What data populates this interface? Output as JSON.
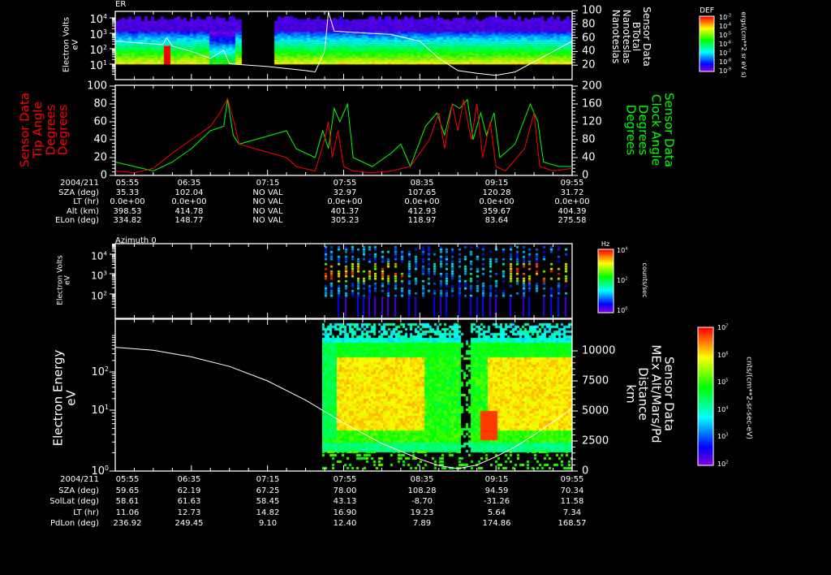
{
  "colors": {
    "background": "#000000",
    "axis": "#ffffff",
    "tip_angle": "#ff0000",
    "clock_angle": "#00ff00",
    "btotal": "#ffffff",
    "altitude": "#ffffff"
  },
  "chart_data": [
    {
      "type": "heatmap",
      "id": "er",
      "title": "ER",
      "ylabel": [
        "Electron Volts",
        "eV"
      ],
      "yscale": "log",
      "ylim": [
        1,
        10000
      ],
      "yticks": [
        {
          "base": "10",
          "exp": "4"
        },
        {
          "base": "10",
          "exp": "3"
        },
        {
          "base": "10",
          "exp": "2"
        },
        {
          "base": "10",
          "exp": "1"
        }
      ],
      "y2label": [
        "Sensor Data",
        "BTotal",
        "Nanoteslas",
        "Nanoteslas"
      ],
      "y2lim": [
        0,
        100
      ],
      "y2ticks": [
        "100",
        "80",
        "60",
        "40",
        "20"
      ],
      "data_gap": [
        "07:00",
        "07:17"
      ],
      "colorbar": {
        "title": "DEF",
        "units": "ergs/(cm**2 sr eV s)",
        "ticks": [
          {
            "base": "10",
            "exp": "-3"
          },
          {
            "base": "10",
            "exp": "-4"
          },
          {
            "base": "10",
            "exp": "-5"
          },
          {
            "base": "10",
            "exp": "-6"
          },
          {
            "base": "10",
            "exp": "-7"
          },
          {
            "base": "10",
            "exp": "-8"
          },
          {
            "base": "10",
            "exp": "-9"
          }
        ]
      },
      "line_series": {
        "name": "BTotal (nT)",
        "x": [
          "05:55",
          "06:10",
          "06:20",
          "06:22",
          "06:25",
          "06:35",
          "06:45",
          "06:52",
          "06:55",
          "07:05",
          "07:15",
          "07:25",
          "07:35",
          "07:40",
          "07:45",
          "07:47",
          "07:50",
          "08:00",
          "08:20",
          "08:35",
          "08:45",
          "08:55",
          "09:05",
          "09:15",
          "09:25",
          "09:35",
          "09:45",
          "09:55"
        ],
        "y": [
          55,
          52,
          50,
          60,
          48,
          40,
          30,
          42,
          22,
          20,
          18,
          15,
          12,
          10,
          40,
          98,
          70,
          68,
          65,
          55,
          30,
          12,
          8,
          5,
          10,
          25,
          40,
          55
        ]
      }
    },
    {
      "type": "line",
      "id": "angles",
      "xlim": [
        "05:55",
        "09:55"
      ],
      "ylabel": [
        "Sensor Data",
        "Tip Angle",
        "Degrees",
        "Degrees"
      ],
      "ylim": [
        0,
        100
      ],
      "yticks": [
        "100",
        "80",
        "60",
        "40",
        "20",
        "0"
      ],
      "y2label": [
        "Sensor Data",
        "Clock Angle",
        "Degrees",
        "Degrees"
      ],
      "y2lim": [
        0,
        200
      ],
      "y2ticks": [
        "200",
        "160",
        "120",
        "80",
        "40",
        "0"
      ],
      "series": [
        {
          "name": "Tip Angle",
          "axis": "left",
          "x": [
            "05:55",
            "06:05",
            "06:15",
            "06:25",
            "06:35",
            "06:45",
            "06:50",
            "06:54",
            "06:58",
            "07:00",
            "07:25",
            "07:30",
            "07:40",
            "07:45",
            "07:47",
            "07:49",
            "07:52",
            "07:55",
            "08:00",
            "08:10",
            "08:20",
            "08:30",
            "08:40",
            "08:45",
            "08:48",
            "08:52",
            "08:55",
            "08:58",
            "09:02",
            "09:05",
            "09:08",
            "09:12",
            "09:15",
            "09:20",
            "09:30",
            "09:35",
            "09:38",
            "09:45",
            "09:55"
          ],
          "y": [
            5,
            3,
            8,
            25,
            40,
            55,
            70,
            86,
            55,
            35,
            20,
            10,
            5,
            40,
            60,
            20,
            50,
            10,
            5,
            3,
            5,
            10,
            40,
            70,
            30,
            80,
            50,
            85,
            40,
            80,
            20,
            60,
            10,
            5,
            30,
            70,
            10,
            5,
            8
          ]
        },
        {
          "name": "Clock Angle",
          "axis": "right",
          "x": [
            "05:55",
            "06:05",
            "06:15",
            "06:25",
            "06:35",
            "06:45",
            "06:52",
            "06:54",
            "06:57",
            "07:00",
            "07:25",
            "07:30",
            "07:40",
            "07:44",
            "07:47",
            "07:50",
            "07:53",
            "07:57",
            "08:00",
            "08:10",
            "08:20",
            "08:25",
            "08:30",
            "08:38",
            "08:44",
            "08:48",
            "08:52",
            "08:56",
            "09:00",
            "09:03",
            "09:07",
            "09:10",
            "09:14",
            "09:17",
            "09:25",
            "09:33",
            "09:37",
            "09:40",
            "09:48",
            "09:55"
          ],
          "y": [
            30,
            20,
            10,
            30,
            60,
            100,
            110,
            170,
            90,
            70,
            100,
            60,
            40,
            100,
            60,
            150,
            120,
            160,
            40,
            20,
            50,
            70,
            20,
            110,
            140,
            90,
            160,
            150,
            170,
            80,
            140,
            90,
            140,
            40,
            70,
            160,
            120,
            30,
            20,
            20
          ]
        }
      ]
    },
    {
      "type": "heatmap",
      "id": "azimuth0",
      "title": "Azimuth 0",
      "ylabel": [
        "Electron Volts",
        "eV"
      ],
      "yscale": "log",
      "yticks": [
        {
          "base": "10",
          "exp": "4"
        },
        {
          "base": "10",
          "exp": "3"
        },
        {
          "base": "10",
          "exp": "2"
        }
      ],
      "colorbar": {
        "title": "Hz",
        "units": "counts/sec",
        "ticks": [
          {
            "base": "10",
            "exp": "4"
          },
          {
            "base": "10",
            "exp": "2"
          },
          {
            "base": "10",
            "exp": "0"
          }
        ]
      }
    },
    {
      "type": "heatmap",
      "id": "electron_energy",
      "ylabel": [
        "Electron Energy",
        "eV"
      ],
      "yscale": "log",
      "yticks": [
        {
          "base": "10",
          "exp": "2"
        },
        {
          "base": "10",
          "exp": "1"
        },
        {
          "base": "10",
          "exp": "0"
        }
      ],
      "y2label": [
        "Sensor Data",
        "MEx Alt/Mars/Pd",
        "Distance",
        "km"
      ],
      "y2lim": [
        0,
        11500
      ],
      "y2ticks": [
        "10000",
        "7500",
        "5000",
        "2500",
        "0"
      ],
      "colorbar": {
        "units": "cnts/(cm**2-sr-sec-eV)",
        "ticks": [
          {
            "base": "10",
            "exp": "7"
          },
          {
            "base": "10",
            "exp": "6"
          },
          {
            "base": "10",
            "exp": "5"
          },
          {
            "base": "10",
            "exp": "4"
          },
          {
            "base": "10",
            "exp": "3"
          },
          {
            "base": "10",
            "exp": "2"
          }
        ]
      },
      "line_series": {
        "name": "MEx Altitude (km)",
        "x": [
          "05:55",
          "06:15",
          "06:35",
          "06:55",
          "07:15",
          "07:35",
          "07:55",
          "08:15",
          "08:35",
          "08:45",
          "08:55",
          "09:05",
          "09:15",
          "09:25",
          "09:35",
          "09:45",
          "09:55"
        ],
        "y": [
          10300,
          10050,
          9500,
          8700,
          7500,
          5900,
          4000,
          2300,
          1000,
          450,
          200,
          500,
          1200,
          2000,
          3000,
          4100,
          5200
        ]
      }
    }
  ],
  "table_top": {
    "labels": [
      "2004/211",
      "SZA (deg)",
      "LT (hr)",
      "Alt (km)",
      "ELon (deg)"
    ],
    "columns": [
      [
        "05:55",
        "35.33",
        "0.0e+00",
        "398.53",
        "334.82"
      ],
      [
        "06:35",
        "102.04",
        "0.0e+00",
        "414.78",
        "148.77"
      ],
      [
        "07:15",
        "NO VAL",
        "NO VAL",
        "NO VAL",
        "NO VAL"
      ],
      [
        "07:55",
        "32.97",
        "0.0e+00",
        "401.37",
        "305.23"
      ],
      [
        "08:35",
        "107.65",
        "0.0e+00",
        "412.93",
        "118.97"
      ],
      [
        "09:15",
        "120.28",
        "0.0e+00",
        "359.67",
        "83.64"
      ],
      [
        "09:55",
        "31.72",
        "0.0e+00",
        "404.39",
        "275.58"
      ]
    ]
  },
  "table_bottom": {
    "labels": [
      "2004/211",
      "SZA (deg)",
      "SolLat (deg)",
      "LT (hr)",
      "PdLon (deg)"
    ],
    "columns": [
      [
        "05:55",
        "59.65",
        "58.61",
        "11.06",
        "236.92"
      ],
      [
        "06:35",
        "62.19",
        "61.63",
        "12.73",
        "249.45"
      ],
      [
        "07:15",
        "67.25",
        "58.45",
        "14.82",
        "9.10"
      ],
      [
        "07:55",
        "78.00",
        "43.13",
        "16.90",
        "12.40"
      ],
      [
        "08:35",
        "108.28",
        "-8.70",
        "19.23",
        "7.89"
      ],
      [
        "09:15",
        "94.59",
        "-31.26",
        "5.64",
        "174.86"
      ],
      [
        "09:55",
        "70.34",
        "11.58",
        "7.34",
        "168.57"
      ]
    ]
  }
}
